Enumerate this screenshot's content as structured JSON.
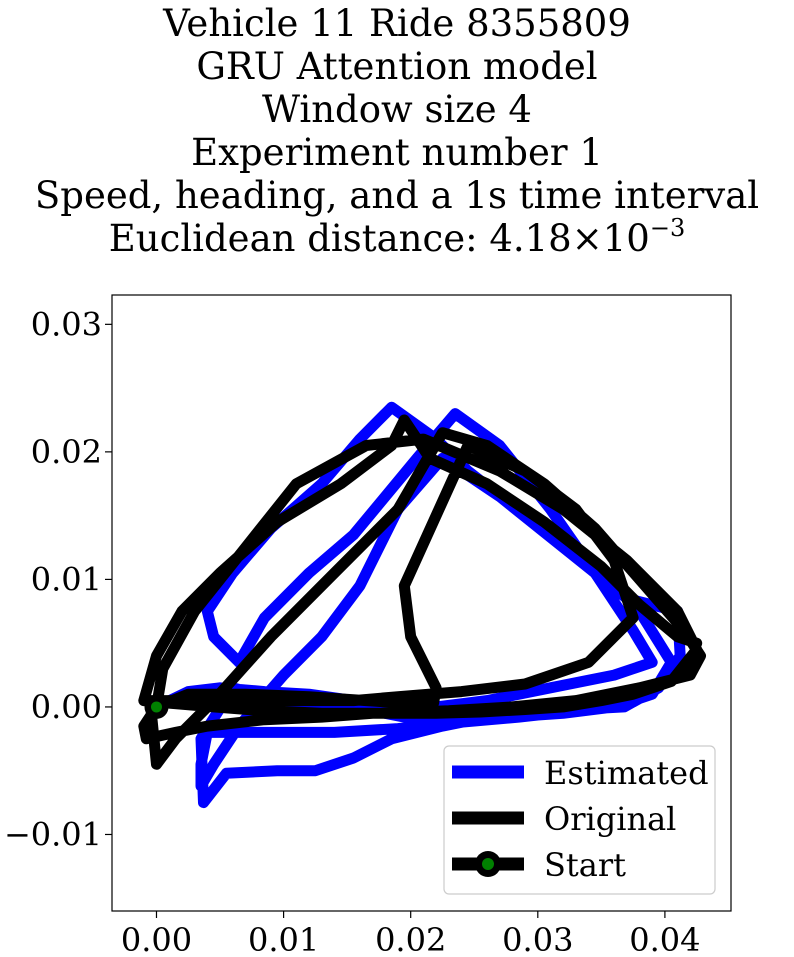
{
  "title": {
    "line1": "Vehicle 11 Ride 8355809",
    "line2": "GRU Attention model",
    "line3": "Window size 4",
    "line4": "Experiment number 1",
    "line5": "Speed, heading, and a 1s time interval",
    "line6_prefix": "Euclidean distance: ",
    "line6_mantissa": "4.18",
    "line6_times": "×",
    "line6_base": "10",
    "line6_exponent": "−3"
  },
  "chart_data": {
    "type": "line",
    "xlim": [
      -0.0035,
      0.0452
    ],
    "ylim": [
      -0.016,
      0.0323
    ],
    "x_ticks": [
      0.0,
      0.01,
      0.02,
      0.03,
      0.04
    ],
    "x_tick_labels": [
      "0.00",
      "0.01",
      "0.02",
      "0.03",
      "0.04"
    ],
    "y_ticks": [
      -0.01,
      0.0,
      0.01,
      0.02,
      0.03
    ],
    "y_tick_labels": [
      "−0.01",
      "0.00",
      "0.01",
      "0.02",
      "0.03"
    ],
    "grid": false,
    "legend_position": "lower-right",
    "series": [
      {
        "name": "Estimated",
        "color": "#0000ff",
        "x": [
          0.0,
          0.0025,
          0.005,
          0.0085,
          0.012,
          0.0155,
          0.0165,
          0.018,
          0.0195,
          0.022,
          0.025,
          0.029,
          0.032,
          0.036,
          0.039,
          0.0405,
          0.038,
          0.034,
          0.029,
          0.0245,
          0.022,
          0.0185,
          0.016,
          0.013,
          0.009,
          0.006,
          0.004,
          0.0045,
          0.0065,
          0.0085,
          0.012,
          0.0155,
          0.018,
          0.0205,
          0.0235,
          0.027,
          0.031,
          0.0345,
          0.0375,
          0.039,
          0.036,
          0.031,
          0.026,
          0.022,
          0.018,
          0.014,
          0.01,
          0.006,
          0.0035,
          0.0037,
          0.0055,
          0.0095,
          0.0125,
          0.0155,
          0.0185,
          0.0225,
          0.025,
          0.029,
          0.033,
          0.0368,
          0.0395,
          0.0412,
          0.041,
          0.037,
          0.032,
          0.027,
          0.0225,
          0.019,
          0.016,
          0.013,
          0.01,
          0.0065,
          0.0045,
          0.0035,
          0.0035,
          0.004,
          0.006,
          0.0095,
          0.014,
          0.019,
          0.024,
          0.0285,
          0.033,
          0.036,
          0.0372
        ],
        "y": [
          0.0,
          0.0012,
          0.0015,
          0.0012,
          0.001,
          0.0005,
          0.0,
          -0.0005,
          -0.0008,
          -0.001,
          -0.0009,
          -0.0007,
          -0.0005,
          0.0,
          0.001,
          0.0035,
          0.0075,
          0.0115,
          0.015,
          0.0185,
          0.021,
          0.0235,
          0.021,
          0.0175,
          0.014,
          0.0105,
          0.0075,
          0.0055,
          0.0035,
          0.007,
          0.0105,
          0.0135,
          0.0165,
          0.0195,
          0.023,
          0.0205,
          0.0155,
          0.0105,
          0.006,
          0.0035,
          0.0025,
          0.0015,
          0.0005,
          0.0,
          0.0,
          0.0,
          0.0005,
          0.0015,
          -0.0025,
          -0.0075,
          -0.0052,
          -0.005,
          -0.005,
          -0.004,
          -0.0025,
          -0.0015,
          -0.001,
          -0.0005,
          -0.0002,
          0.0,
          0.0015,
          0.004,
          0.0075,
          0.0085,
          0.0125,
          0.0165,
          0.0195,
          0.0155,
          0.0095,
          0.0055,
          0.0025,
          -0.0015,
          -0.0045,
          -0.0062,
          -0.0045,
          -0.002,
          -0.002,
          -0.002,
          -0.002,
          -0.0017,
          -0.0012,
          -0.0008,
          -0.0003,
          0.0,
          0.0005
        ]
      },
      {
        "name": "Original",
        "color": "#000000",
        "x": [
          0.0,
          -0.001,
          -0.0008,
          0.0015,
          0.004,
          0.0085,
          0.013,
          0.017,
          0.02,
          0.022,
          0.0255,
          0.029,
          0.032,
          0.035,
          0.0375,
          0.0405,
          0.0425,
          0.041,
          0.037,
          0.032,
          0.027,
          0.021,
          0.0165,
          0.011,
          0.007,
          0.003,
          0.0005,
          0.0,
          0.0025,
          0.007,
          0.012,
          0.0165,
          0.0195,
          0.0218,
          0.022,
          0.02,
          0.0195,
          0.0245,
          0.029,
          0.033,
          0.036,
          0.0375,
          0.034,
          0.029,
          0.024,
          0.019,
          0.0155,
          0.012,
          0.008,
          0.0045,
          0.001,
          -0.0005,
          0.0,
          0.0015,
          0.0045,
          0.009,
          0.014,
          0.019,
          0.0225,
          0.026,
          0.0305,
          0.0345,
          0.038,
          0.0415,
          0.0428,
          0.042,
          0.038,
          0.033,
          0.028,
          0.023,
          0.0175,
          0.013,
          0.0085,
          0.0045,
          0.001,
          -0.001,
          0.0,
          0.002,
          0.005,
          0.0095,
          0.0145,
          0.0185,
          0.0195,
          0.0205,
          0.0215,
          0.026,
          0.0305,
          0.035,
          0.038,
          0.041,
          0.0425
        ],
        "y": [
          0.0,
          -0.0015,
          -0.0025,
          -0.002,
          -0.0015,
          -0.001,
          -0.0008,
          -0.0005,
          -0.0005,
          -0.0005,
          -0.0004,
          -0.0002,
          0.0,
          0.0005,
          0.001,
          0.002,
          0.0045,
          0.0075,
          0.0115,
          0.0155,
          0.0185,
          0.021,
          0.0205,
          0.0175,
          0.0125,
          0.0075,
          0.003,
          0.0,
          0.001,
          0.001,
          0.0008,
          0.0005,
          0.0003,
          0.0003,
          0.0015,
          0.0055,
          0.0095,
          0.0205,
          0.0185,
          0.0155,
          0.0115,
          0.007,
          0.0035,
          0.0018,
          0.0012,
          0.0008,
          0.0005,
          0.0005,
          0.0005,
          0.0005,
          0.0005,
          0.0005,
          -0.0045,
          -0.0025,
          0.0005,
          0.0055,
          0.0105,
          0.0155,
          0.0215,
          0.0205,
          0.0175,
          0.014,
          0.01,
          0.006,
          0.004,
          0.0025,
          0.0015,
          0.0005,
          0.0,
          -0.0003,
          -0.0005,
          -0.0005,
          -0.0003,
          0.0,
          0.0003,
          0.0005,
          0.004,
          0.0075,
          0.0105,
          0.0145,
          0.0175,
          0.0205,
          0.0225,
          0.021,
          0.0195,
          0.0175,
          0.0145,
          0.011,
          0.008,
          0.0055,
          0.005
        ]
      },
      {
        "name": "Start",
        "color": "#000000",
        "marker_color": "#008000",
        "x": [
          0.0
        ],
        "y": [
          0.0
        ]
      }
    ]
  }
}
